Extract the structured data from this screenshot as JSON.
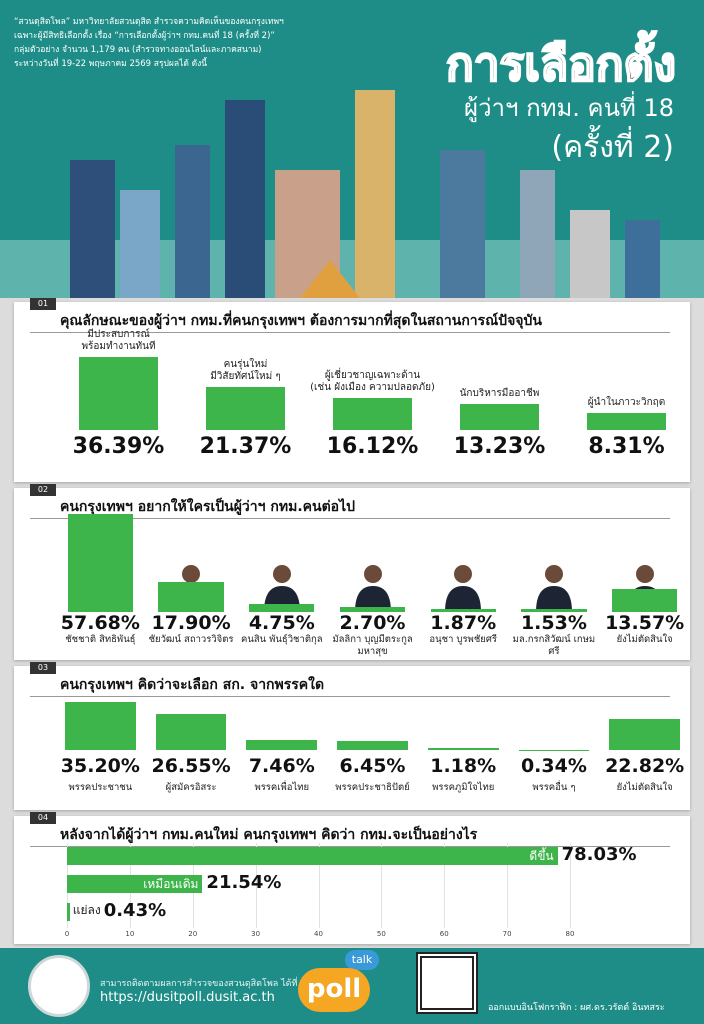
{
  "header": {
    "intro": [
      "“สวนดุสิตโพล” มหาวิทยาลัยสวนดุสิต สำรวจความคิดเห็นของคนกรุงเทพฯ",
      "เฉพาะผู้มีสิทธิเลือกตั้ง เรื่อง “การเลือกตั้งผู้ว่าฯ กทม.คนที่ 18 (ครั้งที่ 2)”",
      "กลุ่มตัวอย่าง จำนวน 1,179 คน (สำรวจทางออนไลน์และภาคสนาม)",
      "ระหว่างวันที่ 19-22 พฤษภาคม 2569 สรุปผลได้ ดังนี้"
    ],
    "title": "การเลือกตั้ง",
    "subtitle": "ผู้ว่าฯ กทม. คนที่ 18",
    "round": "(ครั้งที่ 2)"
  },
  "chart_data": [
    {
      "type": "bar",
      "number": "01",
      "title": "คุณลักษณะของผู้ว่าฯ กทม.ที่คนกรุงเทพฯ ต้องการมากที่สุดในสถานการณ์ปัจจุบัน",
      "categories": [
        "มีประสบการณ์\nพร้อมทำงานทันที",
        "คนรุ่นใหม่\nมีวิสัยทัศน์ใหม่ ๆ",
        "ผู้เชี่ยวชาญเฉพาะด้าน\n(เช่น ผังเมือง ความปลอดภัย)",
        "นักบริหารมืออาชีพ",
        "ผู้นำในภาวะวิกฤต"
      ],
      "values": [
        36.39,
        21.37,
        16.12,
        13.23,
        8.31
      ],
      "value_labels": [
        "36.39%",
        "21.37%",
        "16.12%",
        "13.23%",
        "8.31%"
      ],
      "color": "#3db54a"
    },
    {
      "type": "bar",
      "number": "02",
      "title": "คนกรุงเทพฯ อยากให้ใครเป็นผู้ว่าฯ กทม.คนต่อไป",
      "categories": [
        "ชัชชาติ สิทธิพันธุ์",
        "ชัยวัฒน์ สถาวรวิจิตร",
        "คนสิน พันธุ์วิชาติกุล",
        "มัลลิกา บุญมีตระกูล\nมหาสุข",
        "อนุชา บูรพชัยศรี",
        "มล.กรกสิวัฒน์ เกษมศรี",
        "ยังไม่ตัดสินใจ"
      ],
      "values": [
        57.68,
        17.9,
        4.75,
        2.7,
        1.87,
        1.53,
        13.57
      ],
      "value_labels": [
        "57.68%",
        "17.90%",
        "4.75%",
        "2.70%",
        "1.87%",
        "1.53%",
        "13.57%"
      ],
      "color": "#3db54a"
    },
    {
      "type": "bar",
      "number": "03",
      "title": "คนกรุงเทพฯ คิดว่าจะเลือก สก. จากพรรคใด",
      "categories": [
        "พรรคประชาชน",
        "ผู้สมัครอิสระ",
        "พรรคเพื่อไทย",
        "พรรคประชาธิปัตย์",
        "พรรคภูมิใจไทย",
        "พรรคอื่น ๆ",
        "ยังไม่ตัดสินใจ"
      ],
      "values": [
        35.2,
        26.55,
        7.46,
        6.45,
        1.18,
        0.34,
        22.82
      ],
      "value_labels": [
        "35.20%",
        "26.55%",
        "7.46%",
        "6.45%",
        "1.18%",
        "0.34%",
        "22.82%"
      ],
      "color": "#3db54a"
    },
    {
      "type": "barh",
      "number": "04",
      "title": "หลังจากได้ผู้ว่าฯ กทม.คนใหม่ คนกรุงเทพฯ คิดว่า กทม.จะเป็นอย่างไร",
      "categories": [
        "ดีขึ้น",
        "เหมือนเดิม",
        "แย่ลง"
      ],
      "values": [
        78.03,
        21.54,
        0.43
      ],
      "value_labels": [
        "78.03%",
        "21.54%",
        "0.43%"
      ],
      "xlim": [
        0,
        80
      ],
      "xticks": [
        0,
        10,
        20,
        30,
        40,
        50,
        60,
        70,
        80
      ],
      "color": "#3db54a"
    }
  ],
  "footer": {
    "follow": "สามารถติดตามผลการสำรวจของสวนดุสิตโพล ได้ที่",
    "url": "https://dusitpoll.dusit.ac.th",
    "logo_top": "talk",
    "logo": "poll",
    "credit": "ออกแบบอินโฟกราฟิก : ผศ.ดร.วรัตต์ อินทสระ"
  }
}
